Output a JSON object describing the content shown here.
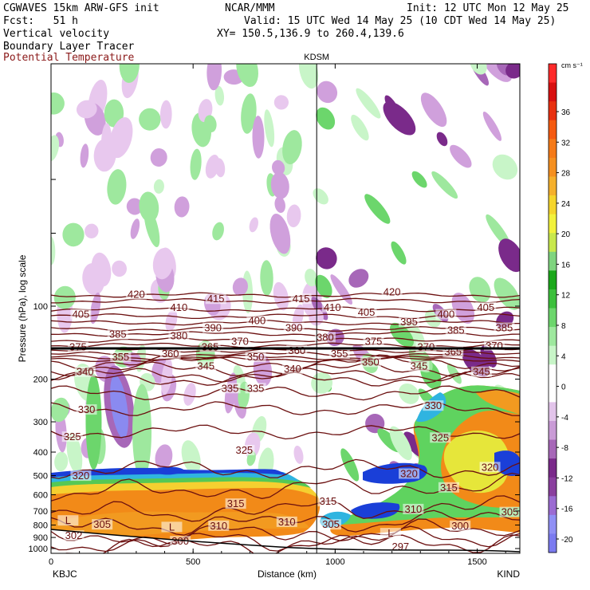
{
  "header": {
    "line1_left": "CGWAVES 15km ARW-GFS init",
    "line1_mid": "NCAR/MMM",
    "line1_right": "Init: 12 UTC Mon 12 May 25",
    "line2_left": "Fcst:   51 h",
    "line2_right": "Valid: 15 UTC Wed 14 May 25 (10 CDT Wed 14 May 25)",
    "line3_left": "Vertical velocity",
    "line3_right": "XY= 150.5,136.9 to 260.4,139.6",
    "line4_left": "Boundary Layer Tracer",
    "line5_left": "Potential Temperature",
    "theta_color": "#8b1a1a"
  },
  "chart_data": {
    "type": "heatmap",
    "station_marker": "KDSM",
    "station_marker_x_km": 935,
    "left_endpoint": "KBJC",
    "right_endpoint": "KIND",
    "xlabel": "Distance (km)",
    "ylabel": "Pressure (hPa), log scale",
    "xlim": [
      0,
      1650
    ],
    "x_ticks": [
      "0",
      "500",
      "1000",
      "1500"
    ],
    "y_ticks": [
      "100",
      "200",
      "300",
      "400",
      "500",
      "600",
      "700",
      "800",
      "900",
      "1000"
    ],
    "y_tick_values": [
      100,
      200,
      300,
      400,
      500,
      600,
      700,
      800,
      900,
      1000
    ],
    "colorbar": {
      "unit": "cm s⁻¹",
      "ticks": [
        -20,
        -16,
        -12,
        -8,
        -4,
        0,
        4,
        8,
        12,
        16,
        20,
        24,
        28,
        32,
        36
      ],
      "colors": [
        "#7b7bf0",
        "#9090f5",
        "#9b6bd2",
        "#8a3f9e",
        "#7a2a8a",
        "#a767b8",
        "#c99bd6",
        "#e2c4ea",
        "#ffffff",
        "#ffffff",
        "#c8f5c8",
        "#9ee89e",
        "#6cd66c",
        "#3cc03c",
        "#1aa81a",
        "#7fd47f",
        "#c8e84c",
        "#f2f23c",
        "#f5d52c",
        "#f5b02c",
        "#f59020",
        "#f57a18",
        "#f55a10",
        "#e83010",
        "#d81010",
        "#ff2a2a"
      ]
    },
    "theta_contours": [
      {
        "label": "420",
        "p": 90
      },
      {
        "label": "415",
        "p": 95
      },
      {
        "label": "410",
        "p": 103
      },
      {
        "label": "405",
        "p": 110
      },
      {
        "label": "400",
        "p": 117
      },
      {
        "label": "395",
        "p": 124
      },
      {
        "label": "390",
        "p": 130
      },
      {
        "label": "385",
        "p": 138
      },
      {
        "label": "380",
        "p": 145
      },
      {
        "label": "375",
        "p": 152
      },
      {
        "label": "370",
        "p": 158
      },
      {
        "label": "365",
        "p": 163
      },
      {
        "label": "360",
        "p": 166
      },
      {
        "label": "355",
        "p": 170
      },
      {
        "label": "350",
        "p": 182
      },
      {
        "label": "345",
        "p": 192
      },
      {
        "label": "340",
        "p": 200
      },
      {
        "label": "335",
        "p": 228
      },
      {
        "label": "330",
        "p": 265
      },
      {
        "label": "325",
        "p": 330
      },
      {
        "label": "320",
        "p": 470
      },
      {
        "label": "315",
        "p": 590
      },
      {
        "label": "310",
        "p": 720
      },
      {
        "label": "305",
        "p": 810
      },
      {
        "label": "302",
        "p": 900
      },
      {
        "label": "300",
        "p": 960
      },
      {
        "label": "297",
        "p": 1000
      }
    ],
    "contour_labels": [
      {
        "text": "420",
        "x": 300,
        "p": 91
      },
      {
        "text": "420",
        "x": 1200,
        "p": 89
      },
      {
        "text": "415",
        "x": 580,
        "p": 95
      },
      {
        "text": "415",
        "x": 880,
        "p": 95
      },
      {
        "text": "410",
        "x": 450,
        "p": 103
      },
      {
        "text": "410",
        "x": 990,
        "p": 103
      },
      {
        "text": "405",
        "x": 105,
        "p": 110
      },
      {
        "text": "405",
        "x": 1110,
        "p": 108
      },
      {
        "text": "405",
        "x": 1530,
        "p": 103
      },
      {
        "text": "400",
        "x": 725,
        "p": 117
      },
      {
        "text": "400",
        "x": 1390,
        "p": 110
      },
      {
        "text": "395",
        "x": 1260,
        "p": 118
      },
      {
        "text": "390",
        "x": 570,
        "p": 125
      },
      {
        "text": "390",
        "x": 855,
        "p": 125
      },
      {
        "text": "385",
        "x": 235,
        "p": 133
      },
      {
        "text": "385",
        "x": 1425,
        "p": 128
      },
      {
        "text": "385",
        "x": 1595,
        "p": 125
      },
      {
        "text": "380",
        "x": 450,
        "p": 135
      },
      {
        "text": "380",
        "x": 965,
        "p": 137
      },
      {
        "text": "375",
        "x": 1135,
        "p": 142
      },
      {
        "text": "375",
        "x": 95,
        "p": 150
      },
      {
        "text": "370",
        "x": 665,
        "p": 142
      },
      {
        "text": "370",
        "x": 1320,
        "p": 150
      },
      {
        "text": "370",
        "x": 1560,
        "p": 148
      },
      {
        "text": "365",
        "x": 560,
        "p": 150
      },
      {
        "text": "365",
        "x": 1415,
        "p": 157
      },
      {
        "text": "360",
        "x": 420,
        "p": 160
      },
      {
        "text": "360",
        "x": 865,
        "p": 155
      },
      {
        "text": "355",
        "x": 245,
        "p": 165
      },
      {
        "text": "355",
        "x": 1015,
        "p": 160
      },
      {
        "text": "350",
        "x": 720,
        "p": 165
      },
      {
        "text": "350",
        "x": 1125,
        "p": 173
      },
      {
        "text": "345",
        "x": 545,
        "p": 180
      },
      {
        "text": "345",
        "x": 1295,
        "p": 180
      },
      {
        "text": "345",
        "x": 1515,
        "p": 190
      },
      {
        "text": "340",
        "x": 120,
        "p": 190
      },
      {
        "text": "340",
        "x": 850,
        "p": 185
      },
      {
        "text": "335",
        "x": 630,
        "p": 222
      },
      {
        "text": "335",
        "x": 720,
        "p": 222
      },
      {
        "text": "330",
        "x": 125,
        "p": 272
      },
      {
        "text": "330",
        "x": 1345,
        "p": 262
      },
      {
        "text": "325",
        "x": 75,
        "p": 352
      },
      {
        "text": "325",
        "x": 680,
        "p": 400
      },
      {
        "text": "325",
        "x": 1370,
        "p": 355
      },
      {
        "text": "320",
        "x": 105,
        "p": 510
      },
      {
        "text": "320",
        "x": 1260,
        "p": 500
      },
      {
        "text": "320",
        "x": 1545,
        "p": 470
      },
      {
        "text": "315",
        "x": 1400,
        "p": 570
      },
      {
        "text": "315",
        "x": 650,
        "p": 665
      },
      {
        "text": "315",
        "x": 975,
        "p": 650
      },
      {
        "text": "310",
        "x": 1275,
        "p": 700
      },
      {
        "text": "310",
        "x": 590,
        "p": 820
      },
      {
        "text": "310",
        "x": 830,
        "p": 790
      },
      {
        "text": "305",
        "x": 985,
        "p": 810
      },
      {
        "text": "305",
        "x": 1615,
        "p": 720
      },
      {
        "text": "305",
        "x": 180,
        "p": 810
      },
      {
        "text": "302",
        "x": 80,
        "p": 900
      },
      {
        "text": "300",
        "x": 455,
        "p": 950
      },
      {
        "text": "300",
        "x": 1440,
        "p": 820
      },
      {
        "text": "297",
        "x": 1230,
        "p": 1000
      },
      {
        "text": "L",
        "x": 60,
        "p": 780
      },
      {
        "text": "L",
        "x": 425,
        "p": 830
      },
      {
        "text": "L",
        "x": 1195,
        "p": 880
      }
    ]
  }
}
